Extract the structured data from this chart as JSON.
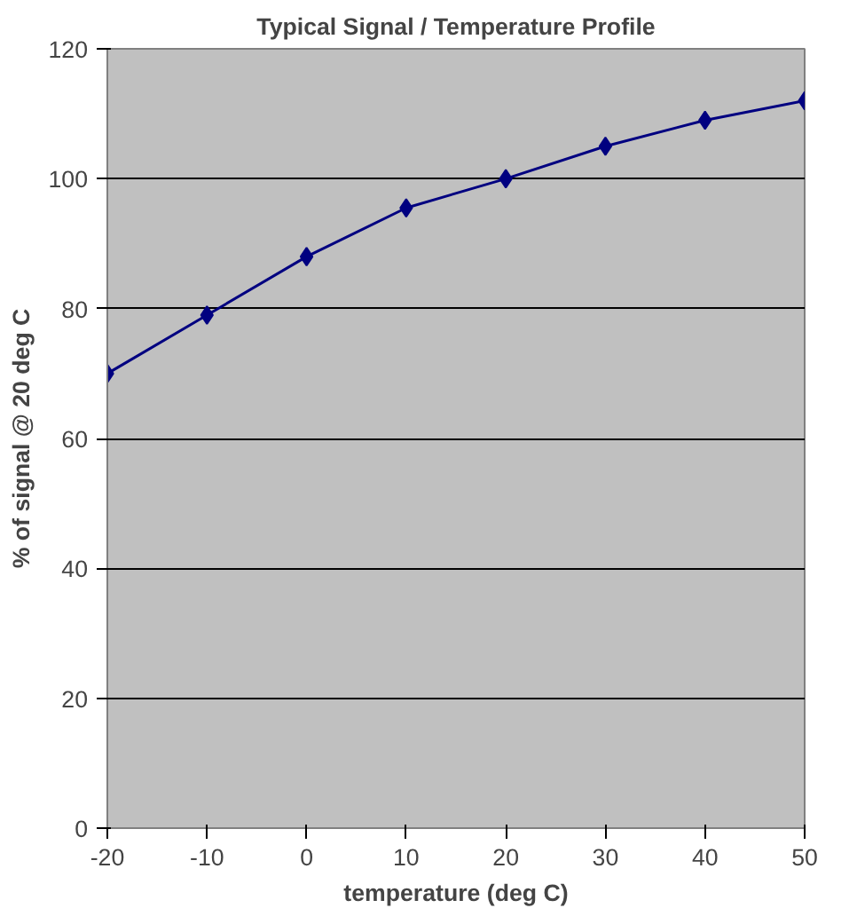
{
  "chart_data": {
    "type": "line",
    "title": "Typical Signal / Temperature Profile",
    "xlabel": "temperature (deg C)",
    "ylabel": "% of signal @ 20 deg C",
    "x": [
      -20,
      -10,
      0,
      10,
      20,
      30,
      40,
      50
    ],
    "series": [
      {
        "color": "#000080",
        "values": [
          70,
          79,
          88,
          95.5,
          100,
          105,
          109,
          112
        ]
      }
    ],
    "xlim": [
      -20,
      50
    ],
    "xticks": [
      -20,
      -10,
      0,
      10,
      20,
      30,
      40,
      50
    ],
    "ylim": [
      0,
      120
    ],
    "yticks": [
      0,
      20,
      40,
      60,
      80,
      100,
      120
    ],
    "grid": "y",
    "marker": "diamond",
    "line_style": "solid"
  }
}
